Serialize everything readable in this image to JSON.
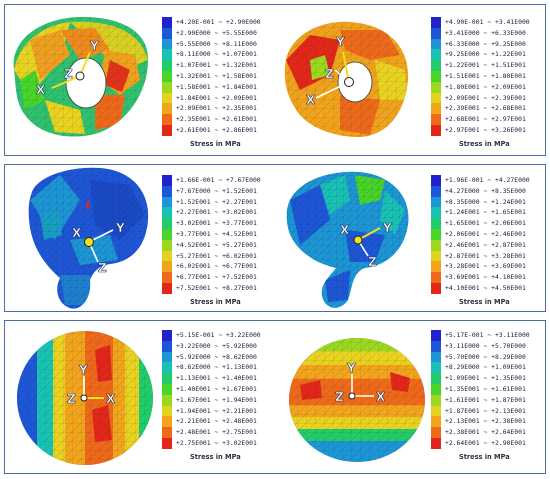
{
  "colors": [
    "#2222cc",
    "#1e56d8",
    "#1d96d6",
    "#18c2b4",
    "#22cc6a",
    "#48d428",
    "#9cd820",
    "#e2d31e",
    "#f1a41c",
    "#ee6a1a",
    "#e3261a"
  ],
  "stress_caption": "Stress in MPa",
  "panels": [
    {
      "left_legend": {
        "labels": [
          "+4.20E-001 ~ +2.90E000",
          "+2.90E000 ~ +5.55E000",
          "+5.55E000 ~ +8.11E000",
          "+8.11E000 ~ +1.07E001",
          "+1.07E001 ~ +1.32E001",
          "+1.32E001 ~ +1.58E001",
          "+1.58E001 ~ +1.84E001",
          "+1.84E001 ~ +2.09E001",
          "+2.09E001 ~ +2.35E001",
          "+2.35E001 ~ +2.61E001",
          "+2.61E001 ~ +2.86E001"
        ]
      },
      "right_legend": {
        "labels": [
          "+4.90E-001 ~ +3.41E000",
          "+3.41E000 ~ +6.33E000",
          "+6.33E000 ~ +9.25E000",
          "+9.25E000 ~ +1.22E001",
          "+1.22E001 ~ +1.51E001",
          "+1.51E001 ~ +1.80E001",
          "+1.80E001 ~ +2.09E001",
          "+2.09E001 ~ +2.39E001",
          "+2.39E001 ~ +2.68E001",
          "+2.68E001 ~ +2.97E001",
          "+2.97E001 ~ +3.26E001"
        ]
      },
      "left_axes": {
        "a": "Y",
        "b": "Z",
        "c": "X"
      },
      "right_axes": {
        "a": "Y",
        "b": "Z",
        "c": "X"
      }
    },
    {
      "left_legend": {
        "labels": [
          "+1.66E-001 ~ +7.67E000",
          "+7.67E000 ~ +1.52E001",
          "+1.52E001 ~ +2.27E001",
          "+2.27E001 ~ +3.02E001",
          "+3.02E001 ~ +3.77E001",
          "+3.77E001 ~ +4.52E001",
          "+4.52E001 ~ +5.27E001",
          "+5.27E001 ~ +6.02E001",
          "+6.02E001 ~ +6.77E001",
          "+6.77E001 ~ +7.52E001",
          "+7.52E001 ~ +8.27E001"
        ]
      },
      "right_legend": {
        "labels": [
          "+1.96E-001 ~ +4.27E000",
          "+4.27E000 ~ +8.35E000",
          "+8.35E000 ~ +1.24E001",
          "+1.24E001 ~ +1.65E001",
          "+1.65E001 ~ +2.06E001",
          "+2.06E001 ~ +2.46E001",
          "+2.46E001 ~ +2.87E001",
          "+2.87E001 ~ +3.28E001",
          "+3.28E001 ~ +3.69E001",
          "+3.69E001 ~ +4.10E001",
          "+4.10E001 ~ +4.50E001"
        ]
      },
      "left_axes": {
        "a": "X",
        "b": "Y",
        "c": "Z"
      },
      "right_axes": {
        "a": "X",
        "b": "Y",
        "c": "Z"
      }
    },
    {
      "left_legend": {
        "labels": [
          "+5.15E-001 ~ +3.22E000",
          "+3.22E000 ~ +5.92E000",
          "+5.92E000 ~ +8.62E000",
          "+8.62E000 ~ +1.13E001",
          "+1.13E001 ~ +1.40E001",
          "+1.40E001 ~ +1.67E001",
          "+1.67E001 ~ +1.94E001",
          "+1.94E001 ~ +2.21E001",
          "+2.21E001 ~ +2.48E001",
          "+2.48E001 ~ +2.75E001",
          "+2.75E001 ~ +3.02E001"
        ]
      },
      "right_legend": {
        "labels": [
          "+5.17E-001 ~ +3.11E000",
          "+3.11E000 ~ +5.70E000",
          "+5.70E000 ~ +8.29E000",
          "+8.29E000 ~ +1.09E001",
          "+1.09E001 ~ +1.35E001",
          "+1.35E001 ~ +1.61E001",
          "+1.61E001 ~ +1.87E001",
          "+1.87E001 ~ +2.13E001",
          "+2.13E001 ~ +2.38E001",
          "+2.38E001 ~ +2.64E001",
          "+2.64E001 ~ +2.90E001"
        ]
      },
      "left_axes": {
        "a": "Y",
        "b": "Z",
        "c": "X"
      },
      "right_axes": {
        "a": "Y",
        "b": "Z",
        "c": "X"
      }
    }
  ]
}
